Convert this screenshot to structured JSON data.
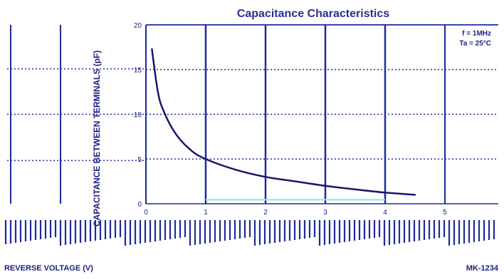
{
  "chart_data": {
    "type": "line",
    "title": "Capacitance Characteristics",
    "xlabel": "",
    "ylabel": "CAPACITANCE BETWEEN TERMINALS (pF)",
    "ylim": [
      0,
      20
    ],
    "y_ticks": [
      "0",
      "5",
      "10",
      "15",
      "20"
    ],
    "xlim": [
      0,
      5
    ],
    "x_ticks": [
      "0",
      "1",
      "2",
      "3",
      "4",
      "5"
    ],
    "legend": [
      "f = 1MHz",
      "Ta = 25°C"
    ],
    "legend_position": "top-right",
    "grid": true,
    "series": [
      {
        "x": [
          0.1,
          0.2,
          0.3,
          0.5,
          0.75,
          1.0,
          1.5,
          2.0,
          2.5,
          3.0,
          3.5,
          4.0,
          4.5
        ],
        "values": [
          17.3,
          12.5,
          10.3,
          7.8,
          6.0,
          5.0,
          3.8,
          3.0,
          2.5,
          2.0,
          1.6,
          1.25,
          1.0
        ]
      }
    ],
    "colors": {
      "line": "#16186b",
      "grid": "#1f2a9a",
      "axis": "#2b3090",
      "highlight": "#8fe3f2"
    }
  },
  "footer": {
    "left": "REVERSE VOLTAGE (V)",
    "right": "MK-1234"
  }
}
